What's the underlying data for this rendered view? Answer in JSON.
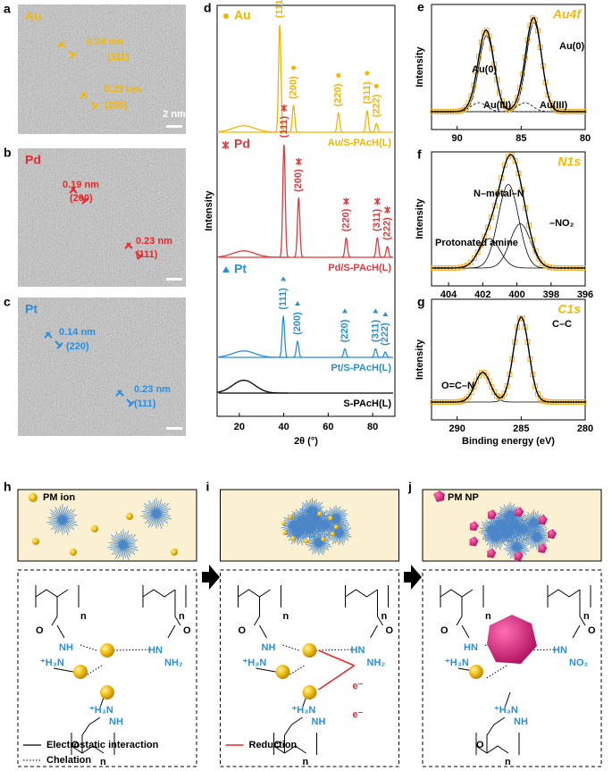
{
  "panels": {
    "tem": [
      {
        "letter": "a",
        "element": "Au",
        "color": "#f5b800",
        "scale": "2 nm",
        "spacings": [
          {
            "d": "0.24 nm",
            "hkl": "(111)"
          },
          {
            "d": "0.20 nm",
            "hkl": "(200)"
          }
        ]
      },
      {
        "letter": "b",
        "element": "Pd",
        "color": "#e8282b",
        "spacings": [
          {
            "d": "0.19 nm",
            "hkl": "(200)"
          },
          {
            "d": "0.23 nm",
            "hkl": "(111)"
          }
        ]
      },
      {
        "letter": "c",
        "element": "Pt",
        "color": "#2a8ee0",
        "spacings": [
          {
            "d": "0.14 nm",
            "hkl": "(220)"
          },
          {
            "d": "0.23 nm",
            "hkl": "(111)"
          }
        ]
      }
    ],
    "schematic": [
      {
        "letter": "h",
        "legend": "PM ion",
        "chem": [
          "O",
          "NH",
          "⁺H₃N",
          "HN",
          "NH₂",
          "O",
          "⁺H₃N",
          "NH",
          "O",
          "n",
          "n",
          "n"
        ],
        "keys": [
          "Electrostatic interaction",
          "Chelation"
        ]
      },
      {
        "letter": "i",
        "chem": [
          "O",
          "NH",
          "⁺H₃N",
          "HN",
          "NH₂",
          "O",
          "⁺H₃N",
          "NH",
          "O",
          "n",
          "n",
          "n",
          "e⁻",
          "e⁻"
        ],
        "keys": [
          "Reduction"
        ]
      },
      {
        "letter": "j",
        "legend": "PM NP",
        "chem": [
          "O",
          "HN",
          "⁺H₃N",
          "HN",
          "NO₂",
          "O",
          "⁺H₃N",
          "NH",
          "O",
          "n",
          "n",
          "n"
        ]
      }
    ]
  },
  "chart_data": [
    {
      "type": "xrd",
      "letter": "d",
      "ylabel": "Intensity",
      "xlabel": "2θ (°)",
      "xlim": [
        10,
        90
      ],
      "xticks": [
        20,
        40,
        60,
        80
      ],
      "series": [
        {
          "name": "Au/S-PAcH(L)",
          "element": "Au",
          "color": "#f5b400",
          "x": [
            22,
            38.2,
            44.4,
            64.6,
            77.5,
            81.7
          ],
          "values": [
            6,
            100,
            25,
            18,
            20,
            8
          ],
          "labels": [
            null,
            "(111)",
            "(200)",
            "(220)",
            "(311)",
            "(222)"
          ]
        },
        {
          "name": "Pd/S-PAcH(L)",
          "element": "Pd",
          "color": "#e03a3e",
          "x": [
            22,
            40.1,
            46.7,
            68.1,
            82.1,
            86.6
          ],
          "values": [
            6,
            105,
            55,
            18,
            18,
            10
          ],
          "labels": [
            null,
            "(111)",
            "(200)",
            "(220)",
            "(311)",
            "(222)"
          ]
        },
        {
          "name": "Pt/S-PAcH(L)",
          "element": "Pt",
          "color": "#2b8fd8",
          "x": [
            22,
            39.8,
            46.2,
            67.5,
            81.3,
            85.7
          ],
          "values": [
            6,
            38,
            15,
            8,
            8,
            5
          ],
          "labels": [
            null,
            "(111)",
            "(200)",
            "(220)",
            "(311)",
            "(222)"
          ]
        },
        {
          "name": "S-PAcH(L)",
          "color": "#000000",
          "x": [
            22
          ],
          "values": [
            12
          ],
          "labels": [
            null
          ]
        }
      ]
    },
    {
      "type": "xps",
      "letter": "e",
      "title": "Au4f",
      "ylabel": "Intensity",
      "xlim": [
        92,
        80
      ],
      "xticks": [
        90,
        85,
        80
      ],
      "x": [
        87.7,
        84.0,
        88.3,
        84.7
      ],
      "values": [
        85,
        100,
        10,
        10
      ],
      "labels": [
        "Au(0)",
        "Au(0)",
        "Au(III)",
        "Au(III)"
      ],
      "styles": [
        "solid",
        "solid",
        "dashed",
        "dashed"
      ]
    },
    {
      "type": "xps",
      "letter": "f",
      "title": "N1s",
      "ylabel": "Intensity",
      "xlim": [
        405,
        396
      ],
      "xticks": [
        404,
        402,
        400,
        398,
        396
      ],
      "x": [
        400.5,
        399.8,
        401.6
      ],
      "values": [
        85,
        45,
        30
      ],
      "labels": [
        "N–metal–N",
        "–NO₂",
        "Protonated amine"
      ],
      "styles": [
        "solid",
        "solid",
        "solid"
      ]
    },
    {
      "type": "xps",
      "letter": "g",
      "title": "C1s",
      "ylabel": "Intensity",
      "xlabel": "Binding energy (eV)",
      "xlim": [
        292,
        280
      ],
      "xticks": [
        290,
        285,
        280
      ],
      "x": [
        285.0,
        288.0
      ],
      "values": [
        100,
        35
      ],
      "labels": [
        "C–C",
        "O=C–N"
      ],
      "styles": [
        "solid",
        "solid"
      ]
    }
  ]
}
